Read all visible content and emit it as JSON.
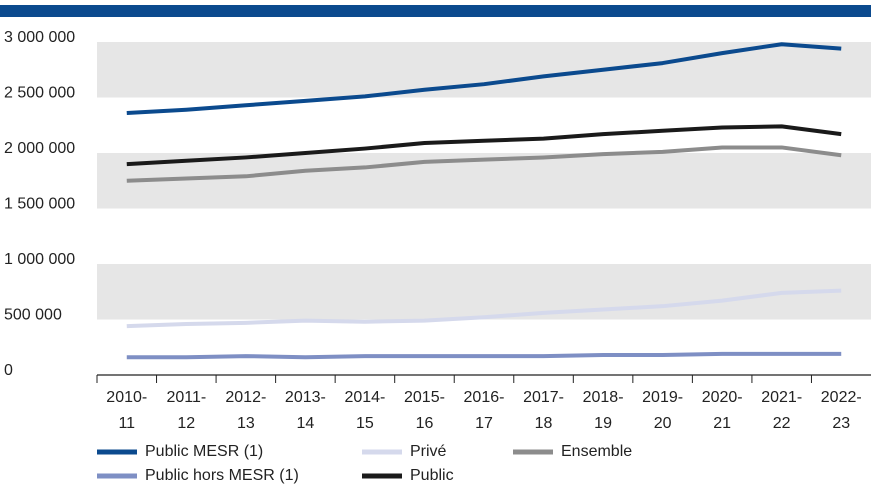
{
  "chart_data": {
    "type": "line",
    "categories": [
      [
        "2010-",
        "11"
      ],
      [
        "2011-",
        "12"
      ],
      [
        "2012-",
        "13"
      ],
      [
        "2013-",
        "14"
      ],
      [
        "2014-",
        "15"
      ],
      [
        "2015-",
        "16"
      ],
      [
        "2016-",
        "17"
      ],
      [
        "2017-",
        "18"
      ],
      [
        "2018-",
        "19"
      ],
      [
        "2019-",
        "20"
      ],
      [
        "2020-",
        "21"
      ],
      [
        "2021-",
        "22"
      ],
      [
        "2022-",
        "23"
      ]
    ],
    "series": [
      {
        "name": "Public MESR (1)",
        "color": "#0b4a8e",
        "values": [
          2360000,
          2390000,
          2430000,
          2470000,
          2510000,
          2570000,
          2620000,
          2690000,
          2750000,
          2810000,
          2900000,
          2980000,
          2940000
        ]
      },
      {
        "name": "Privé",
        "color": "#d5d9ec",
        "values": [
          440000,
          460000,
          470000,
          490000,
          480000,
          490000,
          520000,
          560000,
          590000,
          620000,
          670000,
          740000,
          760000
        ]
      },
      {
        "name": "Ensemble",
        "color": "#8c8c8c",
        "values": [
          1750000,
          1770000,
          1790000,
          1840000,
          1870000,
          1920000,
          1940000,
          1960000,
          1990000,
          2010000,
          2050000,
          2050000,
          1980000
        ]
      },
      {
        "name": "Public hors MESR (1)",
        "color": "#7e8fc4",
        "values": [
          160000,
          160000,
          170000,
          160000,
          170000,
          170000,
          170000,
          170000,
          180000,
          180000,
          190000,
          190000,
          190000
        ]
      },
      {
        "name": "Public",
        "color": "#1a1a1a",
        "values": [
          1900000,
          1930000,
          1960000,
          2000000,
          2040000,
          2090000,
          2110000,
          2130000,
          2170000,
          2200000,
          2230000,
          2240000,
          2170000
        ]
      }
    ],
    "ylim": [
      0,
      3000000
    ],
    "yticks": [
      0,
      {
        "value": 500000,
        "label": "500 000"
      },
      {
        "value": 1000000,
        "label": "1 000 000"
      },
      {
        "value": 1500000,
        "label": "1 500 000"
      },
      {
        "value": 2000000,
        "label": "2 000 000"
      },
      {
        "value": 2500000,
        "label": "2 500 000"
      },
      {
        "value": 3000000,
        "label": "3 000 000"
      }
    ],
    "grid": "alternating-bands"
  }
}
